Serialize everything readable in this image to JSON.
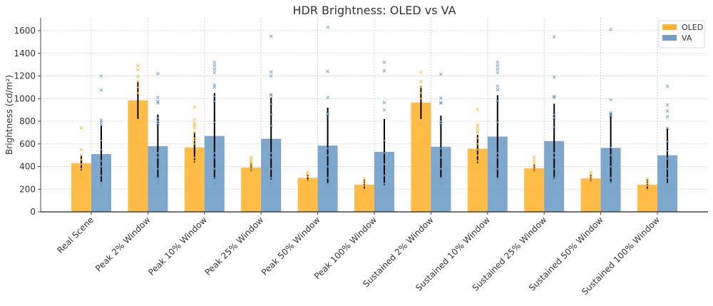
{
  "chart_data": {
    "type": "bar",
    "title": "HDR Brightness: OLED vs VA",
    "xlabel": "",
    "ylabel": "Brightness (cd/m²)",
    "ylim": [
      0,
      1700
    ],
    "yticks": [
      0,
      200,
      400,
      600,
      800,
      1000,
      1200,
      1400,
      1600
    ],
    "grid": true,
    "legend_position": "top-right",
    "categories": [
      "Real Scene",
      "Peak 2% Window",
      "Peak 10% Window",
      "Peak 25% Window",
      "Peak 50% Window",
      "Peak 100% Window",
      "Sustained 2% Window",
      "Sustained 10% Window",
      "Sustained 25% Window",
      "Sustained 50% Window",
      "Sustained 100% Window"
    ],
    "series": [
      {
        "name": "OLED",
        "color": "#FFB533",
        "values": [
          430,
          985,
          570,
          392,
          300,
          240,
          965,
          558,
          385,
          295,
          240
        ],
        "error_low": [
          365,
          820,
          435,
          355,
          270,
          200,
          820,
          430,
          355,
          265,
          195
        ],
        "error_high": [
          495,
          1150,
          705,
          430,
          330,
          285,
          1110,
          680,
          420,
          330,
          285
        ],
        "points": [
          [
            740,
            550,
            500,
            460,
            420,
            380,
            330,
            310
          ],
          [
            1290,
            1255,
            1195,
            1150,
            1100,
            1050,
            790,
            735,
            620,
            580
          ],
          [
            925,
            815,
            780,
            760,
            740,
            700,
            650,
            630,
            600,
            480,
            450
          ],
          [
            480,
            460,
            440,
            420,
            400,
            380,
            360
          ],
          [
            350,
            330,
            310,
            280,
            240,
            230,
            200
          ],
          [
            290,
            270,
            250,
            230,
            200,
            180,
            150
          ],
          [
            1230,
            1150,
            1100,
            1050,
            1000,
            780,
            730,
            620,
            580
          ],
          [
            905,
            770,
            750,
            720,
            700,
            650,
            600,
            550,
            500,
            450
          ],
          [
            480,
            450,
            420,
            400,
            380,
            360
          ],
          [
            350,
            330,
            310,
            290,
            270,
            240
          ],
          [
            290,
            270,
            250,
            230,
            200,
            140
          ]
        ]
      },
      {
        "name": "VA",
        "color": "#6F9DC6",
        "values": [
          510,
          580,
          670,
          645,
          585,
          530,
          575,
          665,
          625,
          565,
          500
        ],
        "error_low": [
          265,
          295,
          290,
          285,
          250,
          235,
          300,
          295,
          290,
          255,
          255
        ],
        "error_high": [
          760,
          860,
          1050,
          1010,
          920,
          820,
          850,
          1030,
          955,
          870,
          735
        ],
        "points": [
          [
            1200,
            1075,
            810,
            790,
            770,
            630,
            550,
            450,
            400,
            320,
            250,
            230
          ],
          [
            1220,
            1010,
            975,
            960,
            830,
            800,
            780,
            520,
            480,
            380,
            300,
            250
          ],
          [
            1320,
            1290,
            1260,
            1230,
            1120,
            1100,
            1020,
            975,
            790,
            520,
            480,
            380,
            300,
            250
          ],
          [
            1550,
            1235,
            1200,
            1035,
            1030,
            950,
            860,
            760,
            520,
            480,
            380,
            300,
            250
          ],
          [
            1630,
            1240,
            1010,
            870,
            860,
            560,
            500,
            400,
            300,
            250
          ],
          [
            1320,
            1245,
            965,
            900,
            630,
            520,
            420,
            320,
            250
          ],
          [
            1215,
            1005,
            965,
            960,
            800,
            780,
            560,
            480,
            380,
            300,
            250
          ],
          [
            1320,
            1290,
            1260,
            1230,
            1110,
            1080,
            980,
            790,
            520,
            480,
            380,
            300,
            250
          ],
          [
            1545,
            1190,
            1020,
            1010,
            860,
            830,
            750,
            520,
            480,
            380,
            300,
            250
          ],
          [
            1610,
            990,
            875,
            860,
            850,
            570,
            500,
            400,
            300,
            260
          ],
          [
            1110,
            945,
            890,
            840,
            740,
            620,
            540,
            470,
            380,
            300,
            250
          ]
        ]
      }
    ]
  }
}
